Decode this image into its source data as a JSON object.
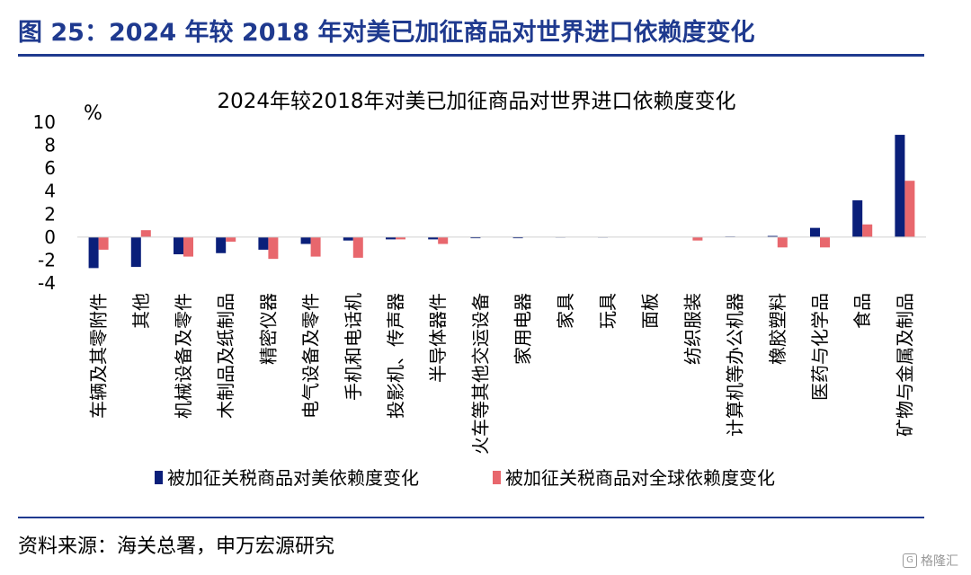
{
  "figure": {
    "title": "图 25：2024 年较 2018 年对美已加征商品对世界进口依赖度变化",
    "source": "资料来源：海关总署，申万宏源研究",
    "watermark": "格隆汇"
  },
  "colors": {
    "brand": "#1f3a8f",
    "series_us": "#0a1f7a",
    "series_global": "#e8676d"
  },
  "chart_data": {
    "type": "bar",
    "title": "2024年较2018年对美已加征商品对世界进口依赖度变化",
    "ylabel": "%",
    "xlabel": "",
    "ylim": [
      -4,
      10
    ],
    "yticks": [
      10,
      8,
      6,
      4,
      2,
      0,
      -2,
      -4
    ],
    "grid": false,
    "legend_position": "bottom",
    "categories": [
      "车辆及其零附件",
      "其他",
      "机械设备及零件",
      "木制品及纸制品",
      "精密仪器",
      "电气设备及零件",
      "手机和电话机",
      "投影机、传声器",
      "半导体器件",
      "火车等其他交运设备",
      "家用电器",
      "家具",
      "玩具",
      "面板",
      "纺织服装",
      "计算机等办公机器",
      "橡胶塑料",
      "医药与化学品",
      "食品",
      "矿物与金属及制品"
    ],
    "series": [
      {
        "name": "被加征关税商品对美依赖度变化",
        "values": [
          -2.7,
          -2.6,
          -1.5,
          -1.4,
          -1.1,
          -0.6,
          -0.3,
          -0.2,
          -0.2,
          -0.1,
          -0.1,
          -0.05,
          -0.05,
          0,
          0,
          0.05,
          0.1,
          0.8,
          3.2,
          8.9
        ]
      },
      {
        "name": "被加征关税商品对全球依赖度变化",
        "values": [
          -1.1,
          0.6,
          -1.7,
          -0.4,
          -1.9,
          -1.7,
          -1.8,
          -0.2,
          -0.6,
          0,
          0,
          0,
          0,
          0,
          -0.3,
          0,
          -0.9,
          -0.9,
          1.1,
          4.9
        ]
      }
    ]
  }
}
